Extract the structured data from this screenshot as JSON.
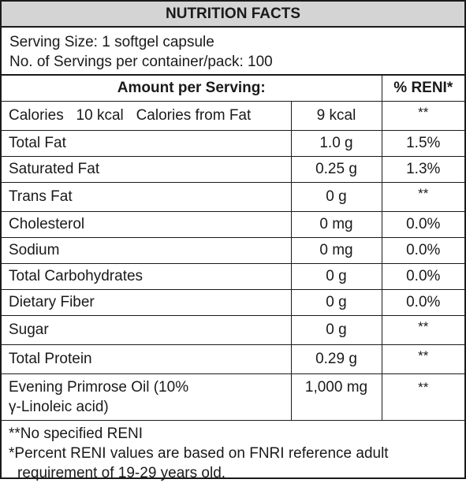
{
  "title": "NUTRITION FACTS",
  "serving": {
    "size": "Serving Size: 1 softgel capsule",
    "servings": "No. of Servings per container/pack: 100"
  },
  "header": {
    "amount": "Amount per Serving:",
    "reni": "% RENI*"
  },
  "calories_row": {
    "label": "Calories   10 kcal   Calories from Fat",
    "amount": "9 kcal",
    "pct": "**"
  },
  "rows": [
    {
      "label": "Total Fat",
      "amount": "1.0 g",
      "pct": "1.5%"
    },
    {
      "label": "Saturated Fat",
      "amount": "0.25 g",
      "pct": "1.3%"
    },
    {
      "label": "Trans Fat",
      "amount": "0 g",
      "pct": "**"
    },
    {
      "label": "Cholesterol",
      "amount": "0 mg",
      "pct": "0.0%"
    },
    {
      "label": "Sodium",
      "amount": "0 mg",
      "pct": "0.0%"
    },
    {
      "label": "Total Carbohydrates",
      "amount": "0 g",
      "pct": "0.0%"
    },
    {
      "label": "Dietary Fiber",
      "amount": "0 g",
      "pct": "0.0%"
    },
    {
      "label": "Sugar",
      "amount": "0 g",
      "pct": "**"
    },
    {
      "label": "Total Protein",
      "amount": "0.29 g",
      "pct": "**"
    }
  ],
  "primrose_row": {
    "label_line1": "Evening Primrose Oil (10%",
    "label_line2": "γ-Linoleic acid)",
    "amount": "1,000 mg",
    "pct": "**"
  },
  "footnotes": {
    "line1": "**No specified RENI",
    "line2": "*Percent RENI values are based on FNRI reference adult",
    "line3": "requirement of 19-29 years old."
  }
}
